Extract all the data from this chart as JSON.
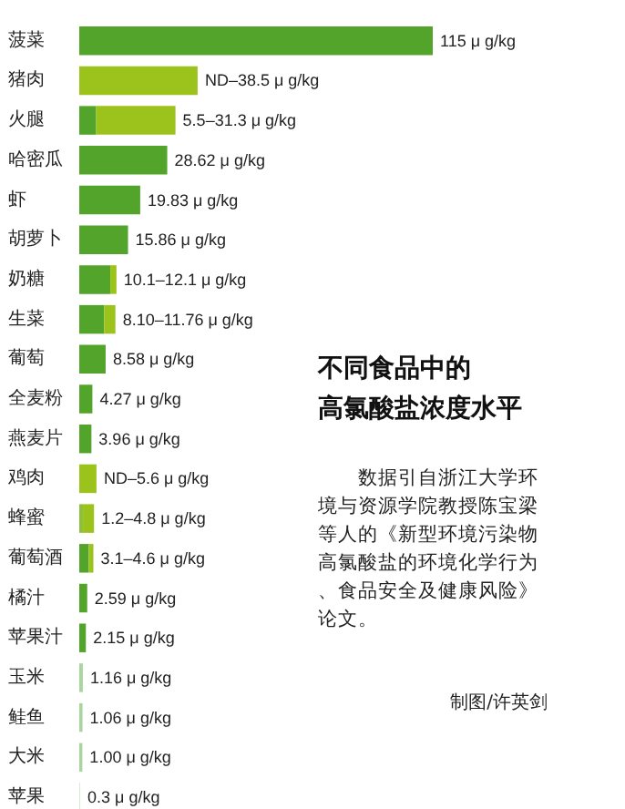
{
  "chart_data": {
    "type": "bar",
    "orientation": "horizontal",
    "stacked": true,
    "title": "不同食品中的",
    "subtitle": "高氯酸盐浓度水平",
    "annotations": [
      "数据引自浙江大学环境与资源学院教授陈宝梁等人的《新型环境污染物高氯酸盐的环境化学行为、食品安全及健康风险》论文。",
      "制图/许英剑"
    ],
    "categories": [
      "菠菜",
      "猪肉",
      "火腿",
      "哈密瓜",
      "虾",
      "胡萝卜",
      "奶糖",
      "生菜",
      "葡萄",
      "全麦粉",
      "燕麦片",
      "鸡肉",
      "蜂蜜",
      "葡萄酒",
      "橘汁",
      "苹果汁",
      "玉米",
      "鲑鱼",
      "大米",
      "苹果"
    ],
    "series": [
      {
        "colors": [
          "#52a52a",
          "#52a52a",
          "#52a52a",
          "#52a52a",
          "#52a52a",
          "#52a52a",
          "#52a52a",
          "#52a52a",
          "#52a52a",
          "#52a52a",
          "#52a52a",
          "#52a52a",
          "#8cbf3c",
          "#52a52a",
          "#52a52a",
          "#52a52a",
          "#a9d69c",
          "#a9d69c",
          "#a9d69c",
          "#d6ebd0"
        ],
        "values": [
          115,
          null,
          5.5,
          28.62,
          19.83,
          15.86,
          10.1,
          8.1,
          8.58,
          4.27,
          3.96,
          null,
          1.2,
          3.1,
          2.59,
          2.15,
          1.16,
          1.06,
          1.0,
          0.3
        ],
        "value_labels": [
          "115 μ g/kg",
          null,
          null,
          "28.62 μ g/kg",
          "19.83 μ g/kg",
          "15.86 μ g/kg",
          null,
          null,
          "8.58 μ g/kg",
          "4.27 μ g/kg",
          "3.96 μ g/kg",
          null,
          null,
          null,
          "2.59 μ g/kg",
          "2.15 μ g/kg",
          "1.16 μ g/kg",
          "1.06 μ g/kg",
          "1.00 μ g/kg",
          "0.3 μ g/kg"
        ]
      },
      {
        "color": "#9cc31c",
        "values": [
          null,
          38.5,
          25.8,
          null,
          null,
          null,
          2.0,
          3.66,
          null,
          null,
          null,
          5.6,
          3.6,
          1.5,
          null,
          null,
          null,
          null,
          null,
          null
        ],
        "value_labels": [
          null,
          "ND–38.5 μ g/kg",
          "5.5–31.3 μ g/kg",
          null,
          null,
          null,
          "10.1–12.1 μ g/kg",
          "8.10–11.76 μ g/kg",
          null,
          null,
          null,
          "ND–5.6 μ g/kg",
          "1.2–4.8 μ g/kg",
          "3.1–4.6 μ g/kg",
          null,
          null,
          null,
          null,
          null,
          null
        ]
      }
    ],
    "tick_labels": false,
    "grid": false
  }
}
